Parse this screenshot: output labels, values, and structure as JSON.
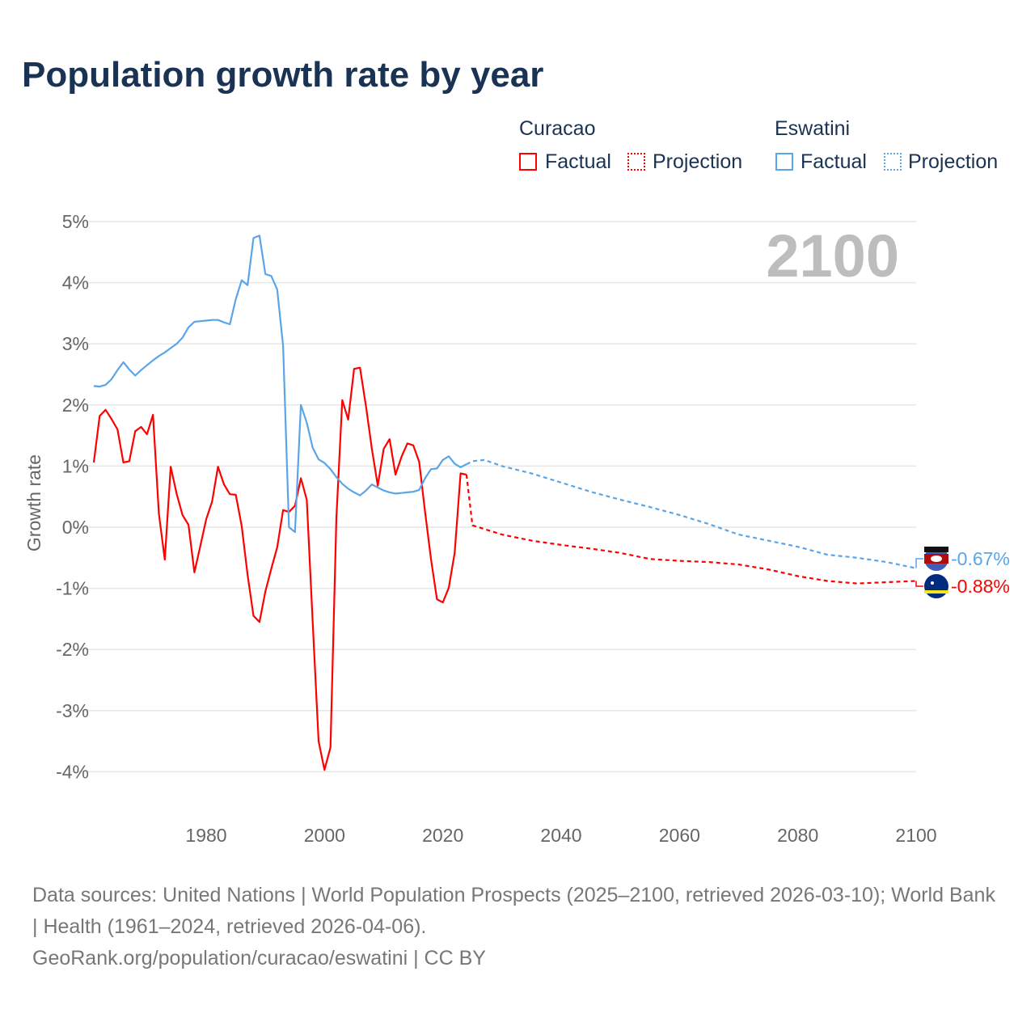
{
  "chart_data": {
    "type": "line",
    "title": "Population growth rate by year",
    "ylabel": "Growth rate",
    "xlabel": "",
    "xlim": [
      1961,
      2100
    ],
    "ylim": [
      -4.5,
      5
    ],
    "x_ticks": [
      "1980",
      "2000",
      "2020",
      "2040",
      "2060",
      "2080",
      "2100"
    ],
    "x_tick_values": [
      1980,
      2000,
      2020,
      2040,
      2060,
      2080,
      2100
    ],
    "y_ticks": [
      "5%",
      "4%",
      "3%",
      "2%",
      "1%",
      "0%",
      "-1%",
      "-2%",
      "-3%",
      "-4%"
    ],
    "y_tick_values": [
      5,
      4,
      3,
      2,
      1,
      0,
      -1,
      -2,
      -3,
      -4
    ],
    "year_watermark": "2100",
    "grid": true,
    "legend_placement": "top-right",
    "series": [
      {
        "name": "Curacao Factual",
        "country": "Curacao",
        "kind": "Factual",
        "color": "#ff0000",
        "x": [
          1961,
          1962,
          1963,
          1964,
          1965,
          1966,
          1967,
          1968,
          1969,
          1970,
          1971,
          1972,
          1973,
          1974,
          1975,
          1976,
          1977,
          1978,
          1979,
          1980,
          1981,
          1982,
          1983,
          1984,
          1985,
          1986,
          1987,
          1988,
          1989,
          1990,
          1991,
          1992,
          1993,
          1994,
          1995,
          1996,
          1997,
          1998,
          1999,
          2000,
          2001,
          2002,
          2003,
          2004,
          2005,
          2006,
          2007,
          2008,
          2009,
          2010,
          2011,
          2012,
          2013,
          2014,
          2015,
          2016,
          2017,
          2018,
          2019,
          2020,
          2021,
          2022,
          2023,
          2024
        ],
        "y": [
          1.06,
          1.82,
          1.92,
          1.77,
          1.6,
          1.06,
          1.08,
          1.57,
          1.64,
          1.52,
          1.84,
          0.22,
          -0.53,
          0.99,
          0.55,
          0.2,
          0.04,
          -0.74,
          -0.31,
          0.13,
          0.42,
          0.99,
          0.7,
          0.54,
          0.53,
          0.02,
          -0.78,
          -1.45,
          -1.55,
          -1.05,
          -0.68,
          -0.33,
          0.28,
          0.25,
          0.35,
          0.8,
          0.45,
          -1.55,
          -3.5,
          -3.97,
          -3.6,
          0.15,
          2.08,
          1.76,
          2.59,
          2.61,
          1.98,
          1.28,
          0.68,
          1.28,
          1.44,
          0.86,
          1.15,
          1.37,
          1.34,
          1.07,
          0.25,
          -0.52,
          -1.18,
          -1.23,
          -0.99,
          -0.42,
          0.88,
          0.86
        ]
      },
      {
        "name": "Curacao Projection",
        "country": "Curacao",
        "kind": "Projection",
        "color": "#ff0000",
        "x": [
          2024,
          2025,
          2030,
          2035,
          2040,
          2045,
          2050,
          2055,
          2060,
          2065,
          2070,
          2075,
          2080,
          2085,
          2090,
          2095,
          2100
        ],
        "y": [
          0.86,
          0.03,
          -0.12,
          -0.22,
          -0.29,
          -0.35,
          -0.42,
          -0.52,
          -0.55,
          -0.57,
          -0.61,
          -0.69,
          -0.8,
          -0.88,
          -0.92,
          -0.9,
          -0.88
        ]
      },
      {
        "name": "Eswatini Factual",
        "country": "Eswatini",
        "kind": "Factual",
        "color": "#5aa5e8",
        "x": [
          1961,
          1962,
          1963,
          1964,
          1965,
          1966,
          1967,
          1968,
          1969,
          1970,
          1971,
          1972,
          1973,
          1974,
          1975,
          1976,
          1977,
          1978,
          1979,
          1980,
          1981,
          1982,
          1983,
          1984,
          1985,
          1986,
          1987,
          1988,
          1989,
          1990,
          1991,
          1992,
          1993,
          1994,
          1995,
          1996,
          1997,
          1998,
          1999,
          2000,
          2001,
          2002,
          2003,
          2004,
          2005,
          2006,
          2007,
          2008,
          2009,
          2010,
          2011,
          2012,
          2013,
          2014,
          2015,
          2016,
          2017,
          2018,
          2019,
          2020,
          2021,
          2022,
          2023,
          2024
        ],
        "y": [
          2.31,
          2.3,
          2.33,
          2.42,
          2.57,
          2.7,
          2.58,
          2.48,
          2.57,
          2.65,
          2.73,
          2.8,
          2.86,
          2.93,
          3.0,
          3.1,
          3.27,
          3.36,
          3.37,
          3.38,
          3.39,
          3.39,
          3.35,
          3.32,
          3.73,
          4.04,
          3.96,
          4.73,
          4.77,
          4.14,
          4.11,
          3.89,
          2.97,
          0.0,
          -0.08,
          2.0,
          1.71,
          1.3,
          1.11,
          1.05,
          0.95,
          0.82,
          0.71,
          0.63,
          0.57,
          0.52,
          0.6,
          0.7,
          0.65,
          0.6,
          0.57,
          0.55,
          0.56,
          0.57,
          0.58,
          0.61,
          0.8,
          0.95,
          0.96,
          1.1,
          1.16,
          1.04,
          0.98,
          1.03
        ]
      },
      {
        "name": "Eswatini Projection",
        "country": "Eswatini",
        "kind": "Projection",
        "color": "#5aa5e8",
        "x": [
          2024,
          2025,
          2027,
          2030,
          2035,
          2040,
          2045,
          2050,
          2055,
          2060,
          2065,
          2070,
          2075,
          2080,
          2085,
          2090,
          2095,
          2100
        ],
        "y": [
          1.03,
          1.08,
          1.1,
          1.0,
          0.88,
          0.73,
          0.58,
          0.45,
          0.33,
          0.2,
          0.05,
          -0.12,
          -0.22,
          -0.32,
          -0.45,
          -0.5,
          -0.57,
          -0.67
        ]
      }
    ],
    "end_labels": {
      "eswatini": "-0.67%",
      "curacao": "-0.88%"
    }
  },
  "legend": {
    "curacao": "Curacao",
    "eswatini": "Eswatini",
    "factual": "Factual",
    "projection": "Projection"
  },
  "sources": {
    "line1": "Data sources: United Nations | World Population Prospects (2025–2100, retrieved 2026-03-10); World Bank | Health (1961–2024, retrieved 2026-04-06).",
    "line2": "GeoRank.org/population/curacao/eswatini | CC BY"
  }
}
